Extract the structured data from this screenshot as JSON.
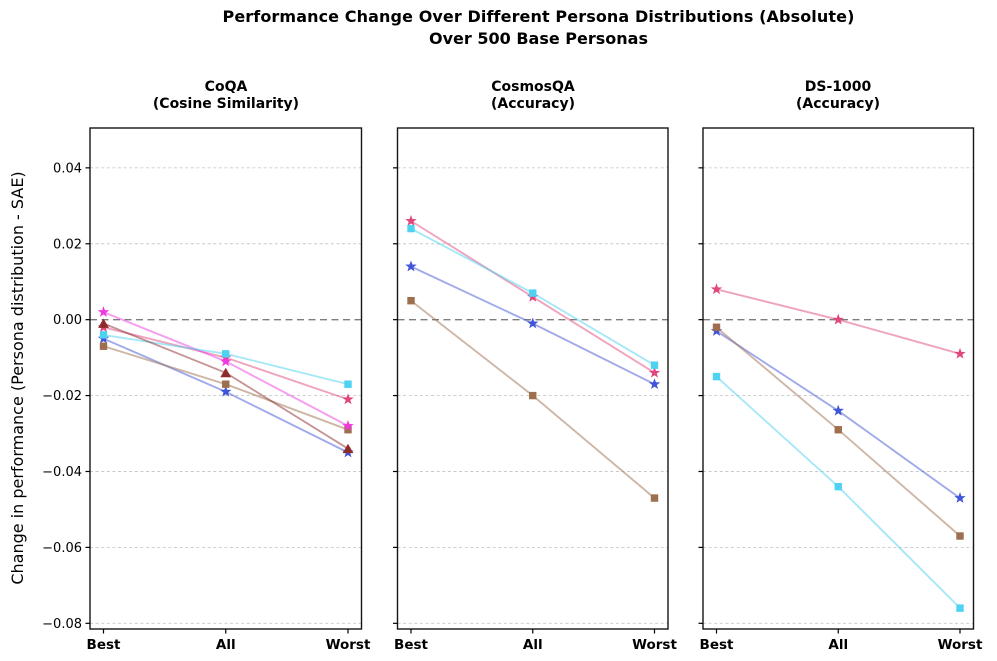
{
  "chart_data": {
    "type": "line",
    "title": "Performance Change Over Different Persona Distributions (Absolute)",
    "subtitle": "Over 500 Base Personas",
    "ylabel": "Change in performance (Persona distribution - SAE)",
    "categories": [
      "Best",
      "All",
      "Worst"
    ],
    "yticks": [
      0.04,
      0.02,
      0.0,
      -0.02,
      -0.04,
      -0.06,
      -0.08
    ],
    "ytick_labels": [
      "0.04",
      "0.02",
      "0.00",
      "−0.02",
      "−0.04",
      "−0.06",
      "−0.08"
    ],
    "ylim": [
      -0.0815,
      0.0505
    ],
    "grid": "horizontal-dashed",
    "zero_line": "dashed-gray",
    "legend": "none",
    "colors": {
      "royal_blue": "#4155d8",
      "brown": "#9e6f4e",
      "crimson": "#e0487d",
      "magenta": "#f03ae0",
      "cyan": "#4dd2f2",
      "dark_red": "#8e2b2b",
      "grid": "#c9c9c9",
      "zero_line_color": "#7c7c7c",
      "frame": "#151515"
    },
    "subplots": [
      {
        "title": "CoQA",
        "subtitle": "(Cosine Similarity)",
        "series": [
          {
            "name": "royal-blue-star",
            "marker": "star",
            "color": "#4155d8",
            "values": [
              -0.005,
              -0.019,
              -0.035
            ]
          },
          {
            "name": "brown-square",
            "marker": "square",
            "color": "#9e6f4e",
            "values": [
              -0.007,
              -0.017,
              -0.029
            ]
          },
          {
            "name": "crimson-star",
            "marker": "star",
            "color": "#e0487d",
            "values": [
              -0.002,
              -0.01,
              -0.021
            ]
          },
          {
            "name": "magenta-star",
            "marker": "star",
            "color": "#f03ae0",
            "values": [
              0.002,
              -0.011,
              -0.028
            ]
          },
          {
            "name": "cyan-square",
            "marker": "square",
            "color": "#4dd2f2",
            "values": [
              -0.004,
              -0.009,
              -0.017
            ]
          },
          {
            "name": "dark-red-triangle",
            "marker": "triangle",
            "color": "#8e2b2b",
            "values": [
              -0.001,
              -0.014,
              -0.034
            ]
          }
        ]
      },
      {
        "title": "CosmosQA",
        "subtitle": "(Accuracy)",
        "series": [
          {
            "name": "royal-blue-star",
            "marker": "star",
            "color": "#4155d8",
            "values": [
              0.014,
              -0.001,
              -0.017
            ]
          },
          {
            "name": "brown-square",
            "marker": "square",
            "color": "#9e6f4e",
            "values": [
              0.005,
              -0.02,
              -0.047
            ]
          },
          {
            "name": "crimson-star",
            "marker": "star",
            "color": "#e0487d",
            "values": [
              0.026,
              0.006,
              -0.014
            ]
          },
          {
            "name": "cyan-square",
            "marker": "square",
            "color": "#4dd2f2",
            "values": [
              0.024,
              0.007,
              -0.012
            ]
          }
        ]
      },
      {
        "title": "DS-1000",
        "subtitle": "(Accuracy)",
        "series": [
          {
            "name": "royal-blue-star",
            "marker": "star",
            "color": "#4155d8",
            "values": [
              -0.003,
              -0.024,
              -0.047
            ]
          },
          {
            "name": "brown-square",
            "marker": "square",
            "color": "#9e6f4e",
            "values": [
              -0.002,
              -0.029,
              -0.057
            ]
          },
          {
            "name": "crimson-star",
            "marker": "star",
            "color": "#e0487d",
            "values": [
              0.008,
              0.0,
              -0.009
            ]
          },
          {
            "name": "cyan-square",
            "marker": "square",
            "color": "#4dd2f2",
            "values": [
              -0.015,
              -0.044,
              -0.076
            ]
          }
        ]
      }
    ]
  }
}
